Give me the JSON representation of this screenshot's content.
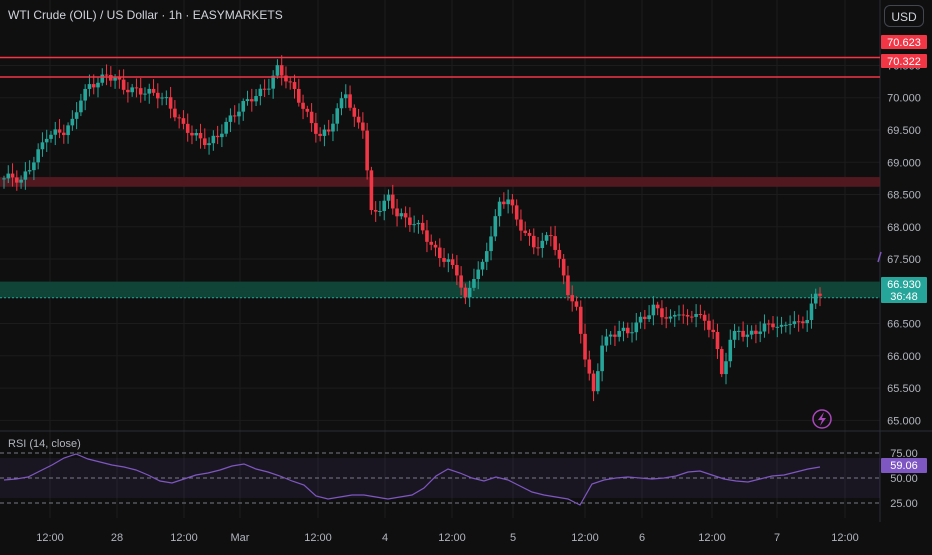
{
  "header": {
    "title": "WTI Crude (OIL) / US Dollar · 1h · EASYMARKETS",
    "currency_button": "USD"
  },
  "colors": {
    "up": "#26a69a",
    "down": "#f23645",
    "background": "#0f0f0f",
    "resistance_line": "#f23645",
    "supply_zone": "#5a1a22",
    "demand_zone": "#0f4a3c",
    "rsi_line": "#7e57c2"
  },
  "price_labels": {
    "upper_resistance": "70.623",
    "lower_resistance": "70.322",
    "current_price": "66.930",
    "countdown": "36:48"
  },
  "rsi": {
    "title": "RSI (14, close)",
    "value_label": "59.06",
    "levels": [
      75,
      50,
      25
    ]
  },
  "chart_data": {
    "type": "candlestick",
    "y_axis_ticks": [
      "70.500",
      "70.000",
      "69.500",
      "69.000",
      "68.500",
      "68.000",
      "67.500",
      "67.000",
      "66.500",
      "66.000",
      "65.500",
      "65.000"
    ],
    "ylim": [
      64.85,
      71.05
    ],
    "x_tick_labels": [
      "12:00",
      "28",
      "12:00",
      "Mar",
      "12:00",
      "4",
      "12:00",
      "5",
      "12:00",
      "6",
      "12:00",
      "7",
      "12:00"
    ],
    "horizontal_lines": [
      70.623,
      70.322
    ],
    "zones": [
      {
        "kind": "supply",
        "from": 68.62,
        "to": 68.77
      },
      {
        "kind": "demand",
        "from": 66.9,
        "to": 67.15
      }
    ],
    "last_price": 66.93,
    "price_path": [
      68.75,
      68.78,
      68.7,
      68.92,
      69.15,
      69.42,
      69.45,
      69.48,
      69.62,
      70.0,
      70.18,
      70.25,
      70.35,
      70.3,
      70.15,
      70.12,
      70.1,
      70.08,
      70.05,
      69.95,
      69.75,
      69.55,
      69.45,
      69.35,
      69.3,
      69.4,
      69.6,
      69.75,
      69.9,
      70.0,
      70.08,
      70.2,
      70.45,
      70.3,
      70.1,
      69.85,
      69.6,
      69.4,
      69.5,
      69.8,
      70.1,
      69.65,
      69.55,
      68.2,
      68.3,
      68.45,
      68.2,
      68.12,
      68.05,
      67.95,
      67.7,
      67.55,
      67.45,
      67.3,
      66.85,
      67.25,
      67.4,
      67.9,
      68.35,
      68.45,
      68.1,
      67.9,
      67.7,
      67.75,
      67.9,
      67.45,
      67.0,
      66.7,
      66.0,
      65.4,
      66.2,
      66.3,
      66.4,
      66.35,
      66.5,
      66.6,
      66.75,
      66.65,
      66.55,
      66.7,
      66.55,
      66.7,
      66.5,
      66.4,
      65.7,
      66.25,
      66.4,
      66.3,
      66.38,
      66.45,
      66.5,
      66.42,
      66.55,
      66.48,
      66.6,
      66.93
    ],
    "rsi_path": [
      48,
      49,
      51,
      57,
      63,
      70,
      74,
      69,
      66,
      63,
      61,
      58,
      53,
      47,
      45,
      49,
      53,
      55,
      58,
      62,
      64,
      59,
      56,
      52,
      47,
      43,
      32,
      29,
      31,
      33,
      33,
      31,
      29,
      31,
      33,
      40,
      52,
      59,
      55,
      50,
      47,
      51,
      48,
      42,
      36,
      33,
      31,
      29,
      23,
      44,
      48,
      50,
      51,
      50,
      49,
      50,
      52,
      56,
      57,
      53,
      49,
      47,
      46,
      49,
      52,
      53,
      56,
      59,
      61
    ]
  }
}
